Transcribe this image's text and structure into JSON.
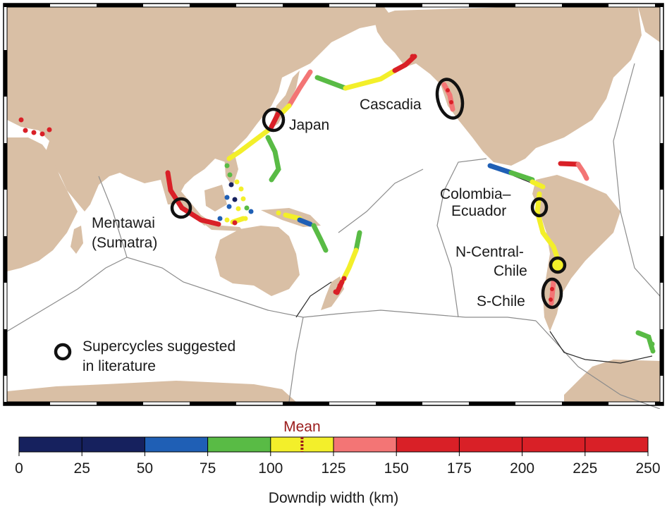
{
  "map": {
    "labels": {
      "japan": "Japan",
      "cascadia": "Cascadia",
      "colombia_line1": "Colombia–",
      "colombia_line2": "Ecuador",
      "mentawai_line1": "Mentawai",
      "mentawai_line2": "(Sumatra)",
      "ncentral_line1": "N-Central-",
      "ncentral_line2": "Chile",
      "schile": "S-Chile"
    },
    "legend": {
      "line1": "Supercycles suggested",
      "line2": "in literature"
    },
    "colors": {
      "ocean": "#ffffff",
      "land": "#d9bfa5",
      "plate_boundary": "#8c8c8c",
      "coastline": "#2a2a2a",
      "marker_ring": "#111111"
    }
  },
  "colorbar": {
    "mean_label": "Mean",
    "mean_value": 112.5,
    "mean_color": "#9a1b1b",
    "xlabel": "Downdip width (km)",
    "range": [
      0,
      250
    ],
    "ticks": [
      "0",
      "25",
      "50",
      "75",
      "100",
      "125",
      "150",
      "175",
      "200",
      "225",
      "250"
    ],
    "bins": [
      {
        "from": 0,
        "to": 50,
        "color": "#16215e"
      },
      {
        "from": 50,
        "to": 75,
        "color": "#1f5fb5"
      },
      {
        "from": 75,
        "to": 100,
        "color": "#59bb45"
      },
      {
        "from": 100,
        "to": 125,
        "color": "#f3ef2a"
      },
      {
        "from": 125,
        "to": 150,
        "color": "#f37575"
      },
      {
        "from": 150,
        "to": 250,
        "color": "#d92027"
      }
    ]
  }
}
